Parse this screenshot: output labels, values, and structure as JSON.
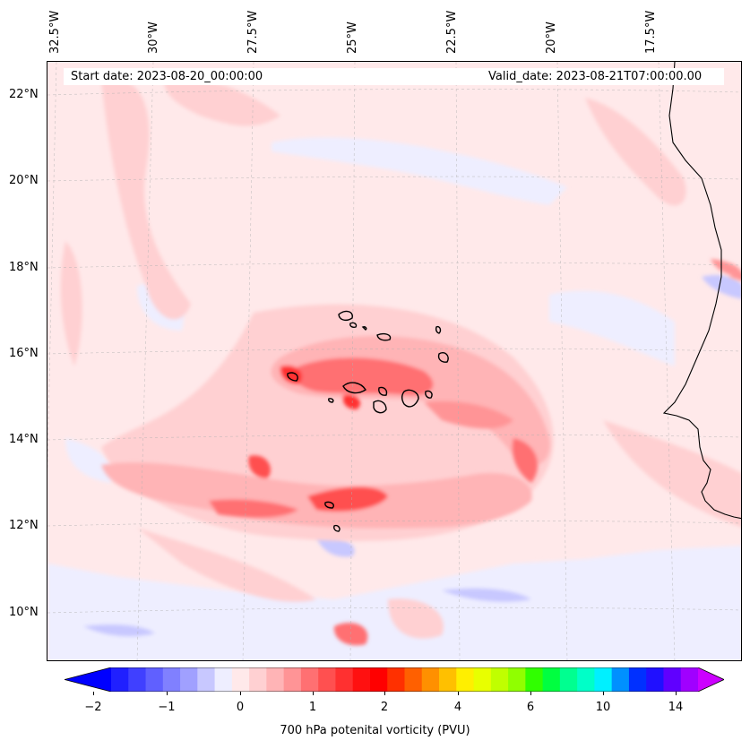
{
  "map": {
    "start_date": "Start date: 2023-08-20_00:00:00",
    "valid_date": "Valid_date: 2023-08-21T07:00:00.00",
    "lon_labels": [
      "32.5°W",
      "30°W",
      "27.5°W",
      "25°W",
      "22.5°W",
      "20°W",
      "17.5°W"
    ],
    "lat_labels": [
      "22°N",
      "20°N",
      "18°N",
      "16°N",
      "14°N",
      "12°N",
      "10°N"
    ]
  },
  "colorbar": {
    "label": "700 hPa potenital vorticity (PVU)",
    "tick_labels": [
      "−2",
      "−1",
      "0",
      "1",
      "2",
      "4",
      "6",
      "10",
      "14"
    ],
    "colors": [
      "#0000ff",
      "#2020ff",
      "#4040ff",
      "#6060ff",
      "#8080ff",
      "#a0a0ff",
      "#c8c8ff",
      "#eeeeff",
      "#ffe9ea",
      "#ffd0d2",
      "#ffb4b6",
      "#ff9496",
      "#ff7072",
      "#ff5050",
      "#ff3030",
      "#ff1010",
      "#ff0000",
      "#ff3000",
      "#ff6000",
      "#ff9000",
      "#ffc000",
      "#ffef00",
      "#e8ff00",
      "#c0ff00",
      "#90ff00",
      "#30ff00",
      "#00ff40",
      "#00ff90",
      "#00ffc8",
      "#00f0ff",
      "#0090ff",
      "#0030ff",
      "#2010ff",
      "#6000ff",
      "#a000ff",
      "#cc00ff"
    ],
    "extend": "both"
  }
}
